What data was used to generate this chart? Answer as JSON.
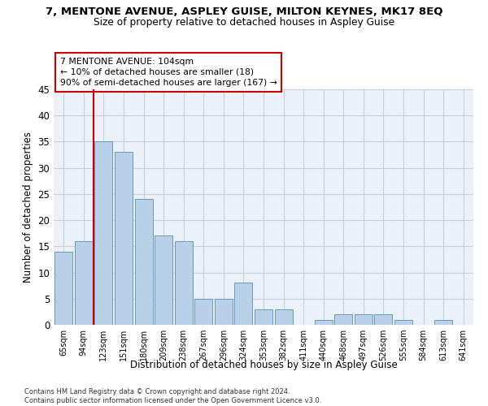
{
  "title1": "7, MENTONE AVENUE, ASPLEY GUISE, MILTON KEYNES, MK17 8EQ",
  "title2": "Size of property relative to detached houses in Aspley Guise",
  "xlabel": "Distribution of detached houses by size in Aspley Guise",
  "ylabel": "Number of detached properties",
  "categories": [
    "65sqm",
    "94sqm",
    "123sqm",
    "151sqm",
    "180sqm",
    "209sqm",
    "238sqm",
    "267sqm",
    "296sqm",
    "324sqm",
    "353sqm",
    "382sqm",
    "411sqm",
    "440sqm",
    "468sqm",
    "497sqm",
    "526sqm",
    "555sqm",
    "584sqm",
    "613sqm",
    "641sqm"
  ],
  "values": [
    14,
    16,
    35,
    33,
    24,
    17,
    16,
    5,
    5,
    8,
    3,
    3,
    0,
    1,
    2,
    2,
    2,
    1,
    0,
    1,
    0
  ],
  "bar_color": "#b8d0e8",
  "bar_edge_color": "#6699bb",
  "vline_color": "#cc0000",
  "vline_x": 1.5,
  "annotation_line1": "7 MENTONE AVENUE: 104sqm",
  "annotation_line2": "← 10% of detached houses are smaller (18)",
  "annotation_line3": "90% of semi-detached houses are larger (167) →",
  "annotation_box_edge": "#cc0000",
  "ylim_max": 45,
  "yticks": [
    0,
    5,
    10,
    15,
    20,
    25,
    30,
    35,
    40,
    45
  ],
  "footer": "Contains HM Land Registry data © Crown copyright and database right 2024.\nContains public sector information licensed under the Open Government Licence v3.0.",
  "bg_color": "#ecf0f8",
  "grid_color": "#c8cfd8"
}
